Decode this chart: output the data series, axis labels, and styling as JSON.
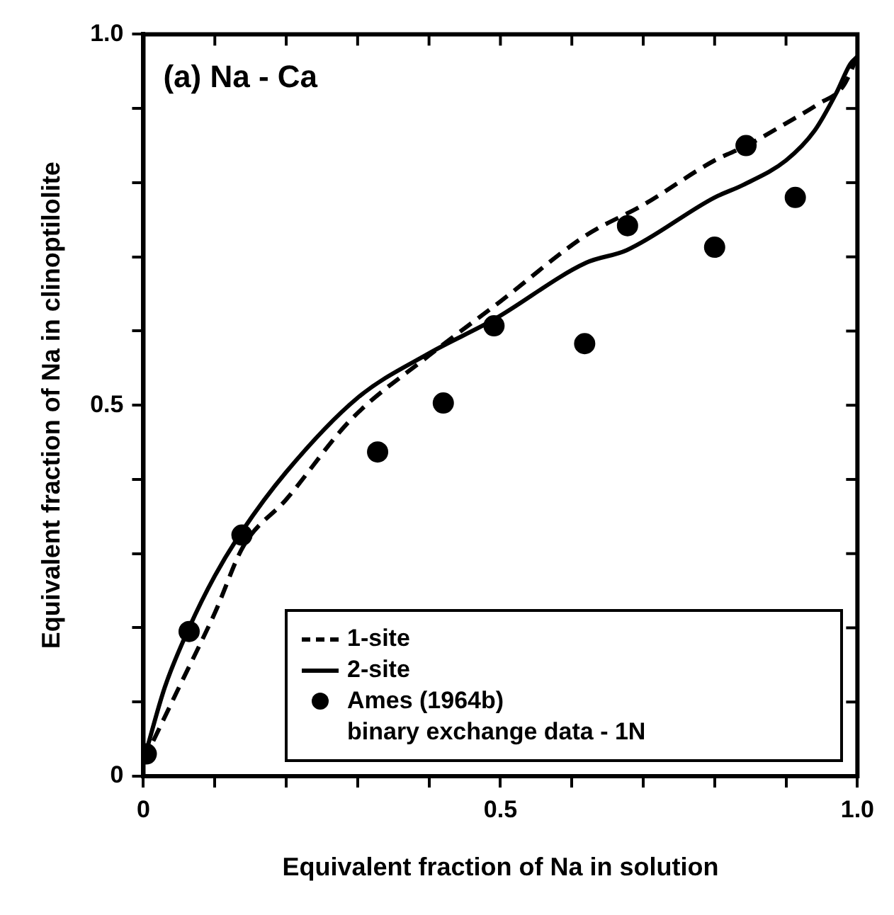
{
  "chart_data": {
    "type": "line",
    "xlabel": "Equivalent fraction of Na in solution",
    "ylabel": "Equivalent fraction of Na in clinoptilolite",
    "annotations": [
      "(a) Na - Ca"
    ],
    "xlim": [
      0,
      1
    ],
    "ylim": [
      0,
      1
    ],
    "xticks": [
      0,
      {
        "value": 0.1,
        "label": null
      },
      {
        "value": 0.2,
        "label": null
      },
      {
        "value": 0.3,
        "label": null
      },
      {
        "value": 0.4,
        "label": null
      },
      0.5,
      {
        "value": 0.6,
        "label": null
      },
      {
        "value": 0.7,
        "label": null
      },
      {
        "value": 0.8,
        "label": null
      },
      {
        "value": 0.9,
        "label": null
      },
      {
        "value": 1,
        "label": "1.0"
      }
    ],
    "yticks": [
      0,
      {
        "value": 0.1,
        "label": null
      },
      {
        "value": 0.2,
        "label": null
      },
      {
        "value": 0.3,
        "label": null
      },
      {
        "value": 0.4,
        "label": null
      },
      0.5,
      {
        "value": 0.6,
        "label": null
      },
      {
        "value": 0.7,
        "label": null
      },
      {
        "value": 0.8,
        "label": null
      },
      {
        "value": 0.9,
        "label": null
      },
      {
        "value": 1,
        "label": "1.0"
      }
    ],
    "grid": false,
    "legend": "bottom right",
    "series": [
      {
        "name": "1-site",
        "line_style": "dashed",
        "marker": "none",
        "color": "#000000",
        "x": [
          0,
          0.05,
          0.1,
          0.14,
          0.2,
          0.29,
          0.4,
          0.5,
          0.62,
          0.7,
          0.8,
          0.845,
          0.9,
          0.945,
          0.98,
          1
        ],
        "values": [
          0.02,
          0.12,
          0.22,
          0.31,
          0.373,
          0.48,
          0.567,
          0.64,
          0.729,
          0.77,
          0.83,
          0.85,
          0.88,
          0.906,
          0.93,
          0.97
        ]
      },
      {
        "name": "2-site",
        "line_style": "solid",
        "marker": "none",
        "color": "#000000",
        "x": [
          0,
          0.03,
          0.064,
          0.1,
          0.138,
          0.2,
          0.3,
          0.4,
          0.49,
          0.62,
          0.677,
          0.8,
          0.84,
          0.9,
          0.94,
          0.97,
          0.99,
          1
        ],
        "values": [
          0.02,
          0.12,
          0.2,
          0.27,
          0.33,
          0.41,
          0.51,
          0.57,
          0.615,
          0.692,
          0.709,
          0.78,
          0.797,
          0.83,
          0.87,
          0.92,
          0.96,
          0.97
        ]
      },
      {
        "name": "Ames (1964b)\nbinary exchange data - 1N",
        "type": "scatter",
        "marker": "circle",
        "color": "#000000",
        "x": [
          0.004,
          0.064,
          0.138,
          0.328,
          0.42,
          0.491,
          0.618,
          0.678,
          0.8,
          0.844,
          0.913
        ],
        "values": [
          0.03,
          0.195,
          0.325,
          0.437,
          0.503,
          0.607,
          0.583,
          0.742,
          0.713,
          0.85,
          0.78
        ]
      }
    ]
  }
}
